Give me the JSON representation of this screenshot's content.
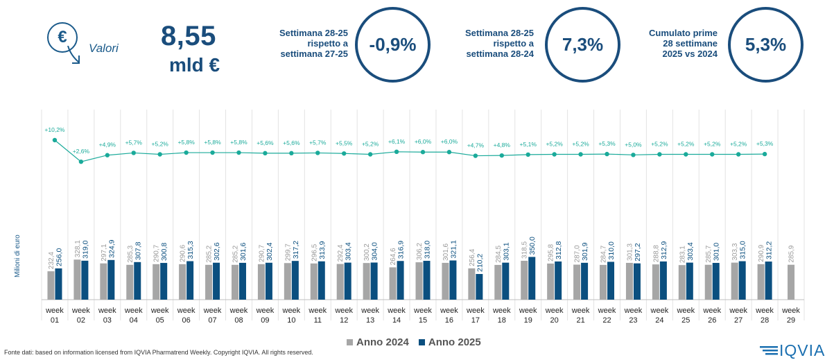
{
  "header": {
    "icon": "euro-down-arrow-icon",
    "valori_label": "Valori",
    "total_value": "8,55",
    "total_unit": "mld €"
  },
  "kpis": [
    {
      "label_lines": [
        "Settimana 28-25",
        "rispetto a",
        "settimana 27-25"
      ],
      "value": "-0,9%"
    },
    {
      "label_lines": [
        "Settimana 28-25",
        "rispetto a",
        "settimana 28-24"
      ],
      "value": "7,3%"
    },
    {
      "label_lines": [
        "Cumulato prime",
        "28 settimane",
        "2025 vs 2024"
      ],
      "value": "5,3%"
    }
  ],
  "chart_data": {
    "type": "bar",
    "ylabel": "Milioni di euro",
    "categories": [
      "week 01",
      "week 02",
      "week 03",
      "week 04",
      "week 05",
      "week 06",
      "week 07",
      "week 08",
      "week 09",
      "week 10",
      "week 11",
      "week 12",
      "week 13",
      "week 14",
      "week 15",
      "week 16",
      "week 17",
      "week 18",
      "week 19",
      "week 20",
      "week 21",
      "week 22",
      "week 23",
      "week 24",
      "week 25",
      "week 26",
      "week 27",
      "week 28",
      "week 29"
    ],
    "series": [
      {
        "name": "Anno 2024",
        "color": "#a6a6a6",
        "values": [
          232.4,
          328.1,
          297.1,
          285.3,
          290.7,
          290.6,
          285.2,
          285.2,
          290.7,
          299.7,
          296.5,
          292.4,
          300.2,
          264.6,
          306.2,
          301.6,
          256.4,
          284.5,
          318.5,
          295.8,
          287.0,
          284.7,
          301.3,
          288.8,
          283.1,
          285.7,
          303.3,
          290.9,
          285.9
        ],
        "labels": [
          "232,4",
          "328,1",
          "297,1",
          "285,3",
          "290,7",
          "290,6",
          "285,2",
          "285,2",
          "290,7",
          "299,7",
          "296,5",
          "292,4",
          "300,2",
          "264,6",
          "306,2",
          "301,6",
          "256,4",
          "284,5",
          "318,5",
          "295,8",
          "287,0",
          "284,7",
          "301,3",
          "288,8",
          "283,1",
          "285,7",
          "303,3",
          "290,9",
          "285,9"
        ]
      },
      {
        "name": "Anno 2025",
        "color": "#0b4f7f",
        "values": [
          256.0,
          319.0,
          324.9,
          307.8,
          300.8,
          315.3,
          302.6,
          301.6,
          302.4,
          317.2,
          313.9,
          303.4,
          304.0,
          316.9,
          318.0,
          321.1,
          210.2,
          303.1,
          350.0,
          312.8,
          301.9,
          310.0,
          297.2,
          312.9,
          303.4,
          301.0,
          315.0,
          312.2,
          null
        ],
        "labels": [
          "256,0",
          "319,0",
          "324,9",
          "307,8",
          "300,8",
          "315,3",
          "302,6",
          "301,6",
          "302,4",
          "317,2",
          "313,9",
          "303,4",
          "304,0",
          "316,9",
          "318,0",
          "321,1",
          "210,2",
          "303,1",
          "350,0",
          "312,8",
          "301,9",
          "310,0",
          "297,2",
          "312,9",
          "303,4",
          "301,0",
          "315,0",
          "312,2",
          ""
        ]
      }
    ],
    "growth_line": {
      "color": "#1aaa9a",
      "values": [
        10.2,
        2.6,
        4.9,
        5.7,
        5.2,
        5.8,
        5.8,
        5.8,
        5.6,
        5.6,
        5.7,
        5.5,
        5.2,
        6.1,
        6.0,
        6.0,
        4.7,
        4.8,
        5.1,
        5.2,
        5.2,
        5.3,
        5.0,
        5.2,
        5.2,
        5.2,
        5.2,
        5.3
      ],
      "labels": [
        "+10,2%",
        "+2,6%",
        "+4,9%",
        "+5,7%",
        "+5,2%",
        "+5,8%",
        "+5,8%",
        "+5,8%",
        "+5,6%",
        "+5,6%",
        "+5,7%",
        "+5,5%",
        "+5,2%",
        "+6,1%",
        "+6,0%",
        "+6,0%",
        "+4,7%",
        "+4,8%",
        "+5,1%",
        "+5,2%",
        "+5,2%",
        "+5,3%",
        "+5,0%",
        "+5,2%",
        "+5,2%",
        "+5,2%",
        "+5,2%",
        "+5,3%"
      ]
    },
    "ylim": [
      0,
      400
    ],
    "legend_position": "bottom-center"
  },
  "legend": [
    "Anno 2024",
    "Anno 2025"
  ],
  "footer": {
    "source": "Fonte dati: based on information licensed from IQVIA Pharmatrend Weekly. Copyright IQVIA. All rights reserved.",
    "logo_text": "IQVIA"
  }
}
